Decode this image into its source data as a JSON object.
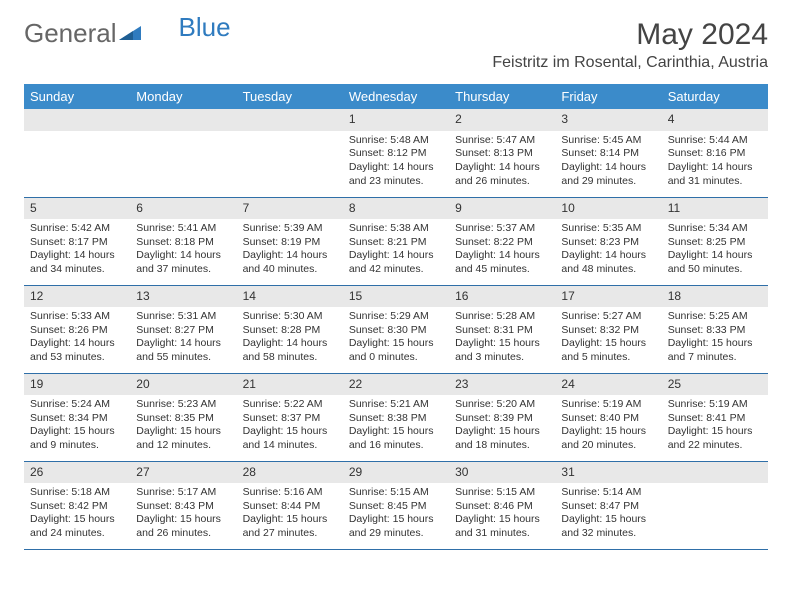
{
  "brand": {
    "part1": "General",
    "part2": "Blue"
  },
  "title": "May 2024",
  "location": "Feistritz im Rosental, Carinthia, Austria",
  "colors": {
    "header_bg": "#3b8bca",
    "header_text": "#ffffff",
    "daynum_bg": "#e8e8e8",
    "row_border": "#2f6fa8",
    "brand_blue": "#2f7bbf",
    "brand_gray": "#666666"
  },
  "weekdays": [
    "Sunday",
    "Monday",
    "Tuesday",
    "Wednesday",
    "Thursday",
    "Friday",
    "Saturday"
  ],
  "weeks": [
    [
      {
        "blank": true
      },
      {
        "blank": true
      },
      {
        "blank": true
      },
      {
        "day": "1",
        "sunrise": "Sunrise: 5:48 AM",
        "sunset": "Sunset: 8:12 PM",
        "daylight": "Daylight: 14 hours and 23 minutes."
      },
      {
        "day": "2",
        "sunrise": "Sunrise: 5:47 AM",
        "sunset": "Sunset: 8:13 PM",
        "daylight": "Daylight: 14 hours and 26 minutes."
      },
      {
        "day": "3",
        "sunrise": "Sunrise: 5:45 AM",
        "sunset": "Sunset: 8:14 PM",
        "daylight": "Daylight: 14 hours and 29 minutes."
      },
      {
        "day": "4",
        "sunrise": "Sunrise: 5:44 AM",
        "sunset": "Sunset: 8:16 PM",
        "daylight": "Daylight: 14 hours and 31 minutes."
      }
    ],
    [
      {
        "day": "5",
        "sunrise": "Sunrise: 5:42 AM",
        "sunset": "Sunset: 8:17 PM",
        "daylight": "Daylight: 14 hours and 34 minutes."
      },
      {
        "day": "6",
        "sunrise": "Sunrise: 5:41 AM",
        "sunset": "Sunset: 8:18 PM",
        "daylight": "Daylight: 14 hours and 37 minutes."
      },
      {
        "day": "7",
        "sunrise": "Sunrise: 5:39 AM",
        "sunset": "Sunset: 8:19 PM",
        "daylight": "Daylight: 14 hours and 40 minutes."
      },
      {
        "day": "8",
        "sunrise": "Sunrise: 5:38 AM",
        "sunset": "Sunset: 8:21 PM",
        "daylight": "Daylight: 14 hours and 42 minutes."
      },
      {
        "day": "9",
        "sunrise": "Sunrise: 5:37 AM",
        "sunset": "Sunset: 8:22 PM",
        "daylight": "Daylight: 14 hours and 45 minutes."
      },
      {
        "day": "10",
        "sunrise": "Sunrise: 5:35 AM",
        "sunset": "Sunset: 8:23 PM",
        "daylight": "Daylight: 14 hours and 48 minutes."
      },
      {
        "day": "11",
        "sunrise": "Sunrise: 5:34 AM",
        "sunset": "Sunset: 8:25 PM",
        "daylight": "Daylight: 14 hours and 50 minutes."
      }
    ],
    [
      {
        "day": "12",
        "sunrise": "Sunrise: 5:33 AM",
        "sunset": "Sunset: 8:26 PM",
        "daylight": "Daylight: 14 hours and 53 minutes."
      },
      {
        "day": "13",
        "sunrise": "Sunrise: 5:31 AM",
        "sunset": "Sunset: 8:27 PM",
        "daylight": "Daylight: 14 hours and 55 minutes."
      },
      {
        "day": "14",
        "sunrise": "Sunrise: 5:30 AM",
        "sunset": "Sunset: 8:28 PM",
        "daylight": "Daylight: 14 hours and 58 minutes."
      },
      {
        "day": "15",
        "sunrise": "Sunrise: 5:29 AM",
        "sunset": "Sunset: 8:30 PM",
        "daylight": "Daylight: 15 hours and 0 minutes."
      },
      {
        "day": "16",
        "sunrise": "Sunrise: 5:28 AM",
        "sunset": "Sunset: 8:31 PM",
        "daylight": "Daylight: 15 hours and 3 minutes."
      },
      {
        "day": "17",
        "sunrise": "Sunrise: 5:27 AM",
        "sunset": "Sunset: 8:32 PM",
        "daylight": "Daylight: 15 hours and 5 minutes."
      },
      {
        "day": "18",
        "sunrise": "Sunrise: 5:25 AM",
        "sunset": "Sunset: 8:33 PM",
        "daylight": "Daylight: 15 hours and 7 minutes."
      }
    ],
    [
      {
        "day": "19",
        "sunrise": "Sunrise: 5:24 AM",
        "sunset": "Sunset: 8:34 PM",
        "daylight": "Daylight: 15 hours and 9 minutes."
      },
      {
        "day": "20",
        "sunrise": "Sunrise: 5:23 AM",
        "sunset": "Sunset: 8:35 PM",
        "daylight": "Daylight: 15 hours and 12 minutes."
      },
      {
        "day": "21",
        "sunrise": "Sunrise: 5:22 AM",
        "sunset": "Sunset: 8:37 PM",
        "daylight": "Daylight: 15 hours and 14 minutes."
      },
      {
        "day": "22",
        "sunrise": "Sunrise: 5:21 AM",
        "sunset": "Sunset: 8:38 PM",
        "daylight": "Daylight: 15 hours and 16 minutes."
      },
      {
        "day": "23",
        "sunrise": "Sunrise: 5:20 AM",
        "sunset": "Sunset: 8:39 PM",
        "daylight": "Daylight: 15 hours and 18 minutes."
      },
      {
        "day": "24",
        "sunrise": "Sunrise: 5:19 AM",
        "sunset": "Sunset: 8:40 PM",
        "daylight": "Daylight: 15 hours and 20 minutes."
      },
      {
        "day": "25",
        "sunrise": "Sunrise: 5:19 AM",
        "sunset": "Sunset: 8:41 PM",
        "daylight": "Daylight: 15 hours and 22 minutes."
      }
    ],
    [
      {
        "day": "26",
        "sunrise": "Sunrise: 5:18 AM",
        "sunset": "Sunset: 8:42 PM",
        "daylight": "Daylight: 15 hours and 24 minutes."
      },
      {
        "day": "27",
        "sunrise": "Sunrise: 5:17 AM",
        "sunset": "Sunset: 8:43 PM",
        "daylight": "Daylight: 15 hours and 26 minutes."
      },
      {
        "day": "28",
        "sunrise": "Sunrise: 5:16 AM",
        "sunset": "Sunset: 8:44 PM",
        "daylight": "Daylight: 15 hours and 27 minutes."
      },
      {
        "day": "29",
        "sunrise": "Sunrise: 5:15 AM",
        "sunset": "Sunset: 8:45 PM",
        "daylight": "Daylight: 15 hours and 29 minutes."
      },
      {
        "day": "30",
        "sunrise": "Sunrise: 5:15 AM",
        "sunset": "Sunset: 8:46 PM",
        "daylight": "Daylight: 15 hours and 31 minutes."
      },
      {
        "day": "31",
        "sunrise": "Sunrise: 5:14 AM",
        "sunset": "Sunset: 8:47 PM",
        "daylight": "Daylight: 15 hours and 32 minutes."
      },
      {
        "blank": true
      }
    ]
  ]
}
